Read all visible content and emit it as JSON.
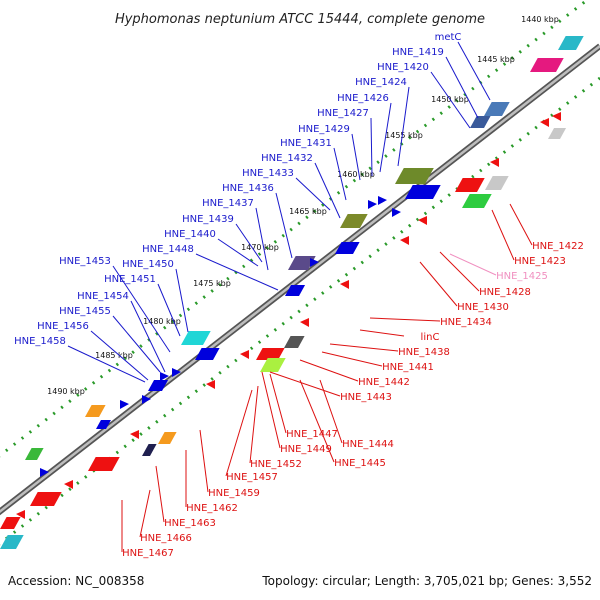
{
  "header": {
    "title": "Hyphomonas neptunium ATCC 15444, complete genome"
  },
  "footer": {
    "accession": "Accession: NC_008358",
    "summary": "Topology: circular; Length: 3,705,021 bp; Genes: 3,552"
  },
  "colors": {
    "forward_label": "#1a1acc",
    "reverse_label": "#dd1111",
    "highlight_label": "#f090c0",
    "backbone": "#888888",
    "tick_dots": "#2a9a2a",
    "forward_gene": "#0000dd",
    "reverse_gene": "#ee1111"
  },
  "scale_marks": [
    "1440 kbp",
    "1445 kbp",
    "1450 kbp",
    "1455 kbp",
    "1460 kbp",
    "1465 kbp",
    "1470 kbp",
    "1475 kbp",
    "1480 kbp",
    "1485 kbp",
    "1490 kbp"
  ],
  "forward_labels": [
    "metC",
    "HNE_1419",
    "HNE_1420",
    "HNE_1424",
    "HNE_1426",
    "HNE_1427",
    "HNE_1429",
    "HNE_1431",
    "HNE_1432",
    "HNE_1433",
    "HNE_1436",
    "HNE_1437",
    "HNE_1439",
    "HNE_1440",
    "HNE_1448",
    "HNE_1450",
    "HNE_1451",
    "HNE_1453",
    "HNE_1454",
    "HNE_1455",
    "HNE_1456",
    "HNE_1458"
  ],
  "reverse_labels": [
    "HNE_1422",
    "HNE_1423",
    "HNE_1425",
    "HNE_1428",
    "HNE_1430",
    "HNE_1434",
    "linC",
    "HNE_1438",
    "HNE_1441",
    "HNE_1442",
    "HNE_1443",
    "HNE_1444",
    "HNE_1445",
    "HNE_1447",
    "HNE_1449",
    "HNE_1452",
    "HNE_1457",
    "HNE_1459",
    "HNE_1462",
    "HNE_1463",
    "HNE_1466",
    "HNE_1467"
  ]
}
